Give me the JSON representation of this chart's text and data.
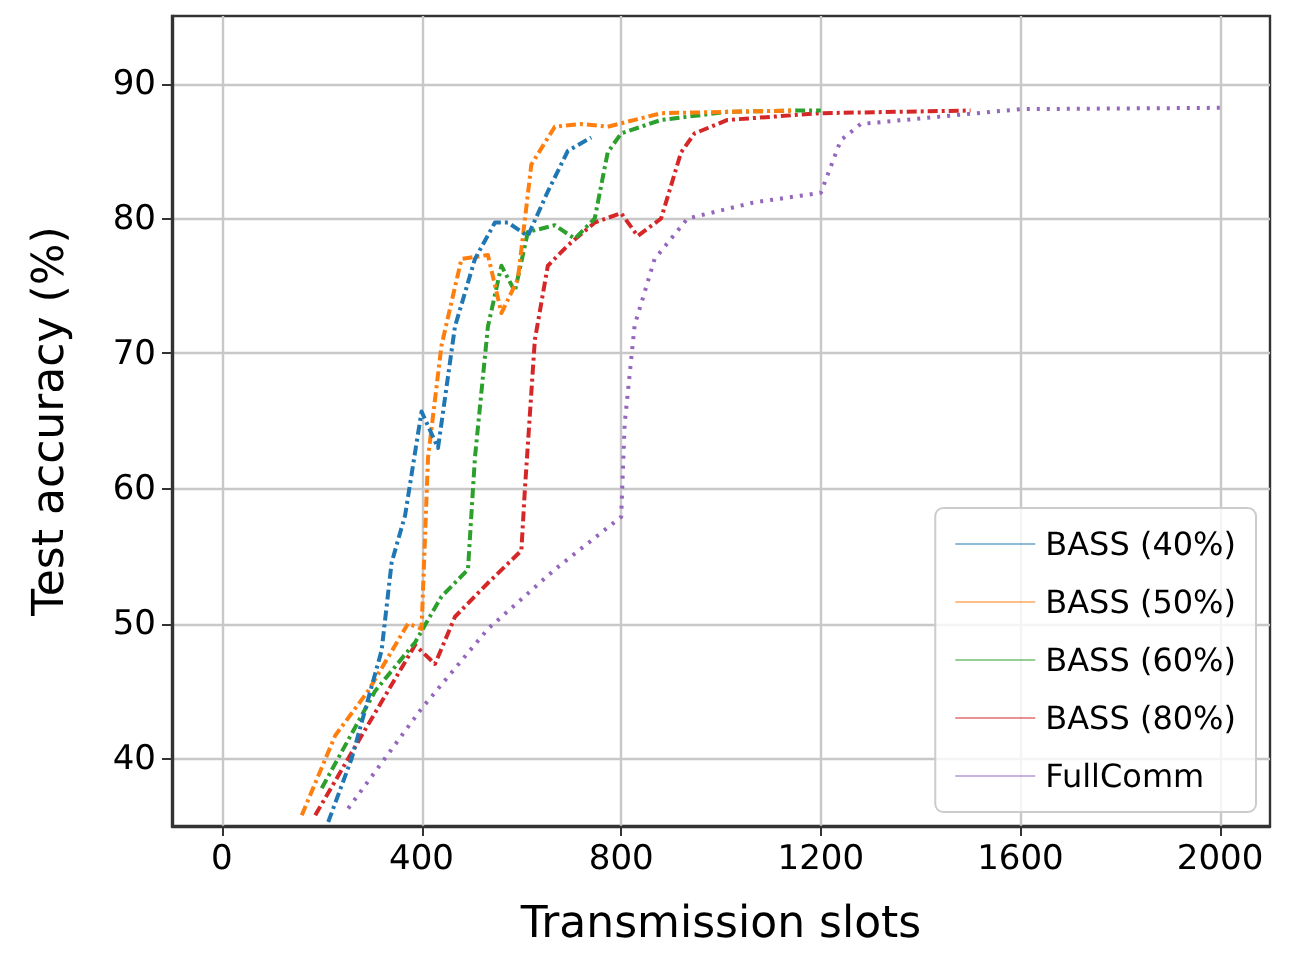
{
  "chart_data": {
    "type": "line",
    "xlabel": "Transmission slots",
    "ylabel": "Test accuracy (%)",
    "xlim": [
      -100,
      2100
    ],
    "xticks": [
      0,
      400,
      800,
      1200,
      1600,
      2000
    ],
    "ylim": [
      35,
      95
    ],
    "yticks": [
      40,
      50,
      60,
      70,
      80,
      90
    ],
    "grid": true,
    "legend": "bottom right",
    "marker": "none",
    "series": [
      {
        "name": "BASS (40%)",
        "color": "#1f77b4",
        "line_style": "dashdot",
        "x": [
          213,
          260,
          320,
          340,
          367,
          400,
          433,
          467,
          507,
          547,
          573,
          613,
          653,
          693,
          740
        ],
        "values": [
          35.3,
          40,
          48,
          54.5,
          58,
          65.7,
          63,
          72,
          77,
          79.7,
          79.7,
          78.7,
          82,
          85,
          86
        ]
      },
      {
        "name": "BASS (50%)",
        "color": "#ff7f0e",
        "line_style": "dashdot",
        "x": [
          160,
          227,
          293,
          373,
          400,
          413,
          440,
          480,
          533,
          560,
          593,
          620,
          667,
          720,
          773,
          880,
          1013,
          1150
        ],
        "values": [
          35.8,
          41.7,
          45,
          50,
          49.6,
          62.3,
          70.6,
          77,
          77.3,
          73,
          75.5,
          84,
          86.8,
          87,
          86.8,
          87.8,
          87.9,
          88
        ]
      },
      {
        "name": "BASS (60%)",
        "color": "#2ca02c",
        "line_style": "dashdot",
        "x": [
          200,
          307,
          387,
          440,
          493,
          507,
          533,
          560,
          587,
          613,
          667,
          707,
          747,
          773,
          800,
          880,
          1013,
          1147,
          1200
        ],
        "values": [
          37.8,
          45,
          48.6,
          52,
          54,
          62.3,
          72,
          76.5,
          74.6,
          79,
          79.5,
          78.5,
          80,
          84.9,
          86.3,
          87.3,
          87.9,
          88,
          88
        ]
      },
      {
        "name": "BASS (80%)",
        "color": "#d62728",
        "line_style": "dashdot",
        "x": [
          187,
          280,
          387,
          427,
          467,
          533,
          600,
          607,
          627,
          653,
          693,
          747,
          800,
          833,
          880,
          920,
          947,
          1013,
          1200,
          1500
        ],
        "values": [
          35.8,
          41.7,
          48.4,
          47,
          50.5,
          53,
          55.4,
          59.9,
          71,
          76.5,
          78,
          79.7,
          80.4,
          78.7,
          80,
          84.9,
          86.3,
          87.3,
          87.8,
          88
        ]
      },
      {
        "name": "FullComm",
        "color": "#9467bd",
        "line_style": "dotted",
        "x": [
          253,
          400,
          533,
          667,
          800,
          807,
          827,
          867,
          933,
          1067,
          1200,
          1240,
          1280,
          1600,
          2000
        ],
        "values": [
          36.3,
          43.7,
          49.6,
          54,
          57.9,
          64.8,
          72.1,
          77,
          80,
          81.2,
          81.9,
          85.8,
          87,
          88.1,
          88.2
        ]
      }
    ]
  }
}
